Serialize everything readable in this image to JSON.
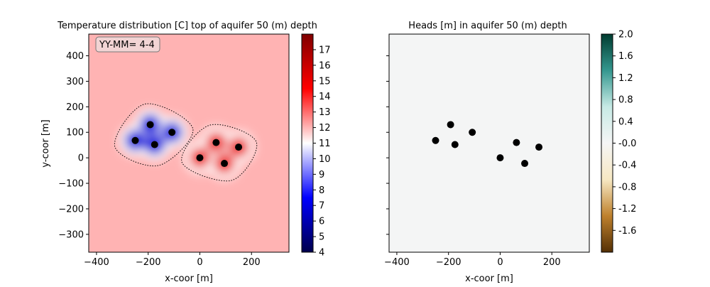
{
  "chart_data": [
    {
      "type": "heatmap",
      "title": "Temperature distribution [C] top of aquifer 50 (m) depth",
      "xlabel": "x-coor [m]",
      "ylabel": "y-coor [m]",
      "annotation": "YY-MM= 4-4",
      "xlim": [
        -430,
        345
      ],
      "ylim": [
        -370,
        485
      ],
      "xticks": [
        -400,
        -200,
        0,
        200
      ],
      "xtick_labels": [
        "−400",
        "−200",
        "0",
        "200"
      ],
      "yticks": [
        -300,
        -200,
        -100,
        0,
        100,
        200,
        300,
        400
      ],
      "ytick_labels": [
        "−300",
        "−200",
        "−100",
        "0",
        "100",
        "200",
        "300",
        "400"
      ],
      "background_value": 12.5,
      "wells_cold": [
        {
          "x": -250,
          "y": 68
        },
        {
          "x": -192,
          "y": 130
        },
        {
          "x": -175,
          "y": 52
        },
        {
          "x": -108,
          "y": 100
        }
      ],
      "wells_warm": [
        {
          "x": 0,
          "y": 0
        },
        {
          "x": 63,
          "y": 60
        },
        {
          "x": 150,
          "y": 42
        },
        {
          "x": 95,
          "y": -22
        }
      ],
      "colorbar": {
        "colormap": "seismic",
        "vmin": 4,
        "vmax": 18,
        "ticks": [
          "4",
          "5",
          "6",
          "7",
          "8",
          "9",
          "10",
          "11",
          "12",
          "13",
          "14",
          "15",
          "16",
          "17"
        ],
        "colors": [
          "#00004c",
          "#0000ff",
          "#ffffff",
          "#ff0000",
          "#800000"
        ]
      }
    },
    {
      "type": "scatter",
      "title": "Heads [m] in aquifer 50 (m) depth",
      "xlabel": "x-coor [m]",
      "xlim": [
        -430,
        345
      ],
      "ylim": [
        -370,
        485
      ],
      "xticks": [
        -400,
        -200,
        0,
        200
      ],
      "xtick_labels": [
        "−400",
        "−200",
        "0",
        "200"
      ],
      "field_color": "#f4f5f5",
      "wells": [
        {
          "x": -250,
          "y": 68
        },
        {
          "x": -192,
          "y": 130
        },
        {
          "x": -175,
          "y": 52
        },
        {
          "x": -108,
          "y": 100
        },
        {
          "x": 0,
          "y": 0
        },
        {
          "x": 63,
          "y": 60
        },
        {
          "x": 150,
          "y": 42
        },
        {
          "x": 95,
          "y": -22
        }
      ],
      "colorbar": {
        "colormap": "BrBG",
        "vmin": -2,
        "vmax": 2,
        "ticks": [
          "2.0",
          "1.6",
          "1.2",
          "0.8",
          "0.4",
          "-0.0",
          "-0.4",
          "-0.8",
          "-1.2",
          "-1.6"
        ],
        "tick_values": [
          2.0,
          1.6,
          1.2,
          0.8,
          0.4,
          0.0,
          -0.4,
          -0.8,
          -1.2,
          -1.6
        ],
        "colors": [
          "#543005",
          "#bf812d",
          "#f6e8c3",
          "#f5f5f5",
          "#c7eae5",
          "#35978f",
          "#003c30"
        ]
      }
    }
  ]
}
